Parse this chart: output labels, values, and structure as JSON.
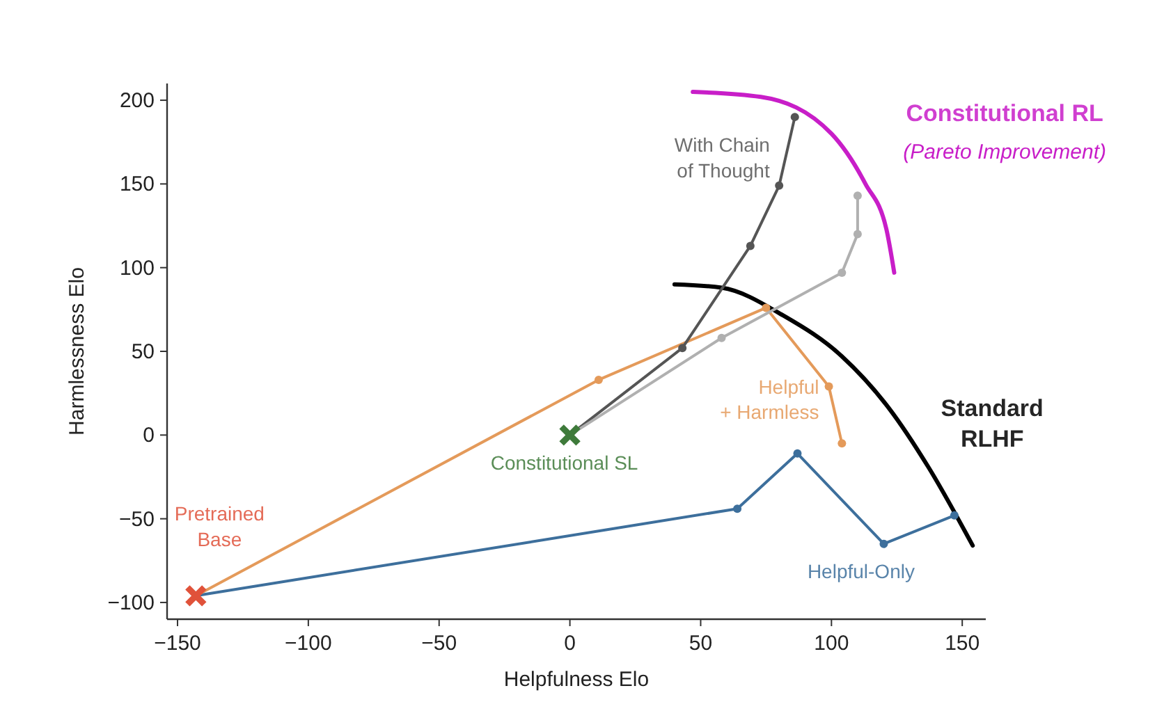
{
  "chart_data": {
    "type": "line",
    "xlabel": "Helpfulness Elo",
    "ylabel": "Harmlessness Elo",
    "xlim": [
      -154,
      159
    ],
    "ylim": [
      -110,
      210
    ],
    "xticks": [
      -150,
      -100,
      -50,
      0,
      50,
      100,
      150
    ],
    "yticks": [
      -100,
      -50,
      0,
      50,
      100,
      150,
      200
    ],
    "grid": false,
    "annotations": [
      "(Pareto Improvement)"
    ],
    "series": [
      {
        "name": "Helpful-Only",
        "color": "#3d6f9c",
        "marker": "circle",
        "x": [
          -143,
          64,
          87,
          120,
          147
        ],
        "values": [
          -96,
          -44,
          -11,
          -65,
          -48
        ]
      },
      {
        "name": "Helpful\n+ Harmless",
        "color": "#e49a5a",
        "marker": "circle",
        "x": [
          -143,
          11,
          75,
          99,
          104
        ],
        "values": [
          -96,
          33,
          76,
          29,
          -5
        ]
      },
      {
        "name": "With Chain\nof Thought",
        "color": "#555555",
        "marker": "circle",
        "x": [
          0,
          43,
          69,
          80,
          86
        ],
        "values": [
          0,
          52,
          113,
          149,
          190
        ]
      },
      {
        "color": "#b0b0b0",
        "marker": "circle",
        "x": [
          0,
          58,
          104,
          110,
          110
        ],
        "values": [
          0,
          58,
          97,
          120,
          143
        ]
      },
      {
        "name": "Standard\nRLHF",
        "color": "#000000",
        "marker": "none",
        "x": [
          40,
          58,
          82,
          104,
          122,
          137,
          154
        ],
        "values": [
          90,
          88,
          71,
          47,
          16,
          -19,
          -66
        ]
      },
      {
        "name": "Constitutional RL",
        "color": "#c81ec8",
        "marker": "none",
        "x": [
          47,
          73,
          100,
          113,
          121,
          124
        ],
        "values": [
          205,
          202,
          180,
          150,
          123,
          97
        ]
      },
      {
        "name": "Pretrained\nBase",
        "type": "scatter",
        "color": "#e0523a",
        "marker": "cross",
        "x": [
          -143
        ],
        "values": [
          -96
        ]
      },
      {
        "name": "Constitutional SL",
        "type": "scatter",
        "color": "#3e7a3a",
        "marker": "cross",
        "x": [
          0
        ],
        "values": [
          0
        ]
      }
    ]
  }
}
